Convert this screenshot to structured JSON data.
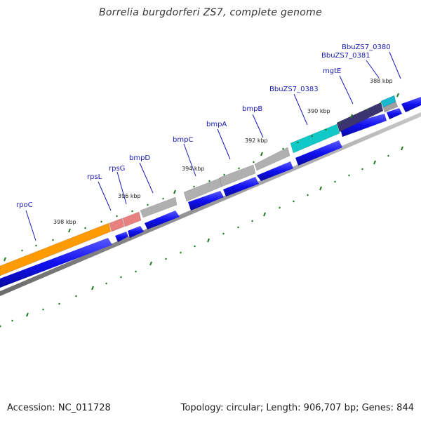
{
  "title": "Borrelia burgdorferi ZS7, complete genome",
  "footer": {
    "accession": "Accession: NC_011728",
    "summary": "Topology: circular; Length: 906,707 bp; Genes: 844"
  },
  "colors": {
    "backbone": "#8a8a8a",
    "cds": "#1a1af0",
    "ticks": "#1a7a1a",
    "label": "#1a1ab8"
  },
  "kbp_labels": [
    {
      "text": "398 kbp"
    },
    {
      "text": "396 kbp"
    },
    {
      "text": "394 kbp"
    },
    {
      "text": "392 kbp"
    },
    {
      "text": "390 kbp"
    },
    {
      "text": "388 kbp"
    }
  ],
  "genes": [
    {
      "label": "rpoC",
      "color": "#ff9a00"
    },
    {
      "label": "rpsL",
      "color": "#e88080"
    },
    {
      "label": "rpsG",
      "color": "#e88080"
    },
    {
      "label": "bmpD",
      "color": "#b0b0b0"
    },
    {
      "label": "bmpC",
      "color": "#b0b0b0"
    },
    {
      "label": "bmpA",
      "color": "#b0b0b0"
    },
    {
      "label": "bmpB",
      "color": "#b0b0b0"
    },
    {
      "label": "BbuZS7_0383",
      "color": "#10c8c8"
    },
    {
      "label": "mgtE",
      "color": "#3c3470"
    },
    {
      "label": "BbuZS7_0381",
      "color": "#18b8d0"
    },
    {
      "label": "BbuZS7_0380",
      "color": "#a0a0a0"
    }
  ]
}
